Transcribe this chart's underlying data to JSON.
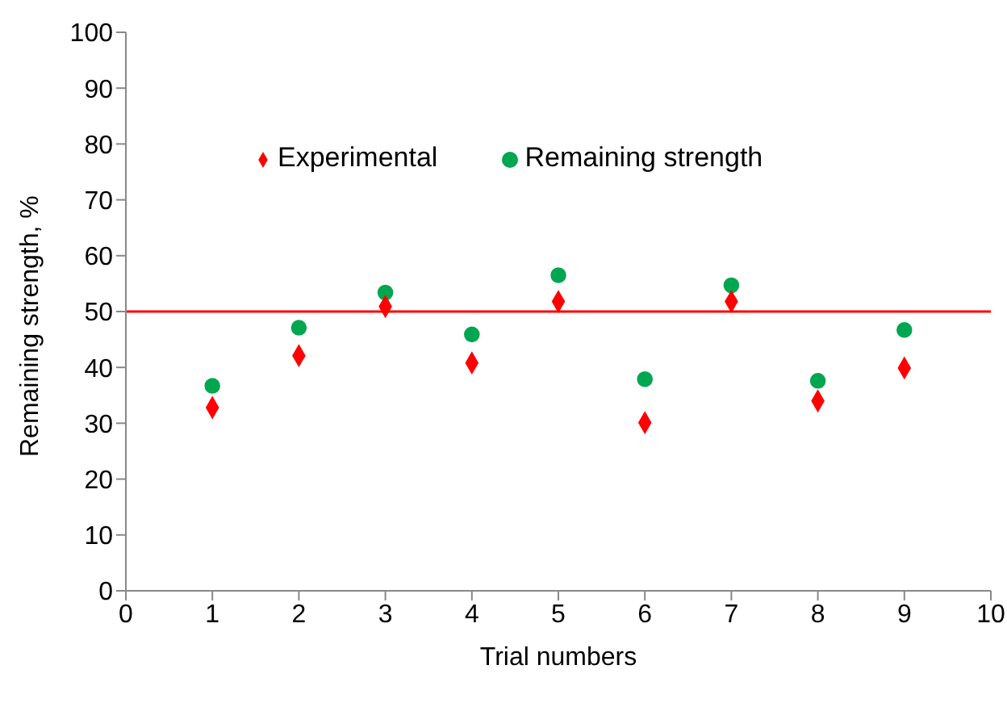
{
  "chart_data": {
    "type": "scatter",
    "xlabel": "Trial numbers",
    "ylabel": "Remaining strength, %",
    "x": [
      1,
      2,
      3,
      4,
      5,
      6,
      7,
      8,
      9
    ],
    "series": [
      {
        "name": "Remaining strength",
        "color": "#00a650",
        "marker": "circle",
        "values": [
          36.7,
          47.1,
          53.4,
          45.9,
          56.5,
          37.9,
          54.7,
          37.6,
          46.7
        ]
      },
      {
        "name": "Experimental",
        "color": "#ff0000",
        "marker": "diamond",
        "values": [
          32.8,
          42.1,
          50.9,
          40.8,
          51.8,
          30.1,
          51.8,
          34.0,
          39.9
        ]
      }
    ],
    "xlim": [
      0,
      10
    ],
    "xticks": [
      0,
      1,
      2,
      3,
      4,
      5,
      6,
      7,
      8,
      9,
      10
    ],
    "ylim": [
      0,
      100
    ],
    "yticks": [
      0,
      10,
      20,
      30,
      40,
      50,
      60,
      70,
      80,
      90,
      100
    ],
    "ref_lines": [
      {
        "axis": "y",
        "value": 50,
        "color": "#ff0000"
      }
    ],
    "grid": false,
    "legend": "top"
  }
}
